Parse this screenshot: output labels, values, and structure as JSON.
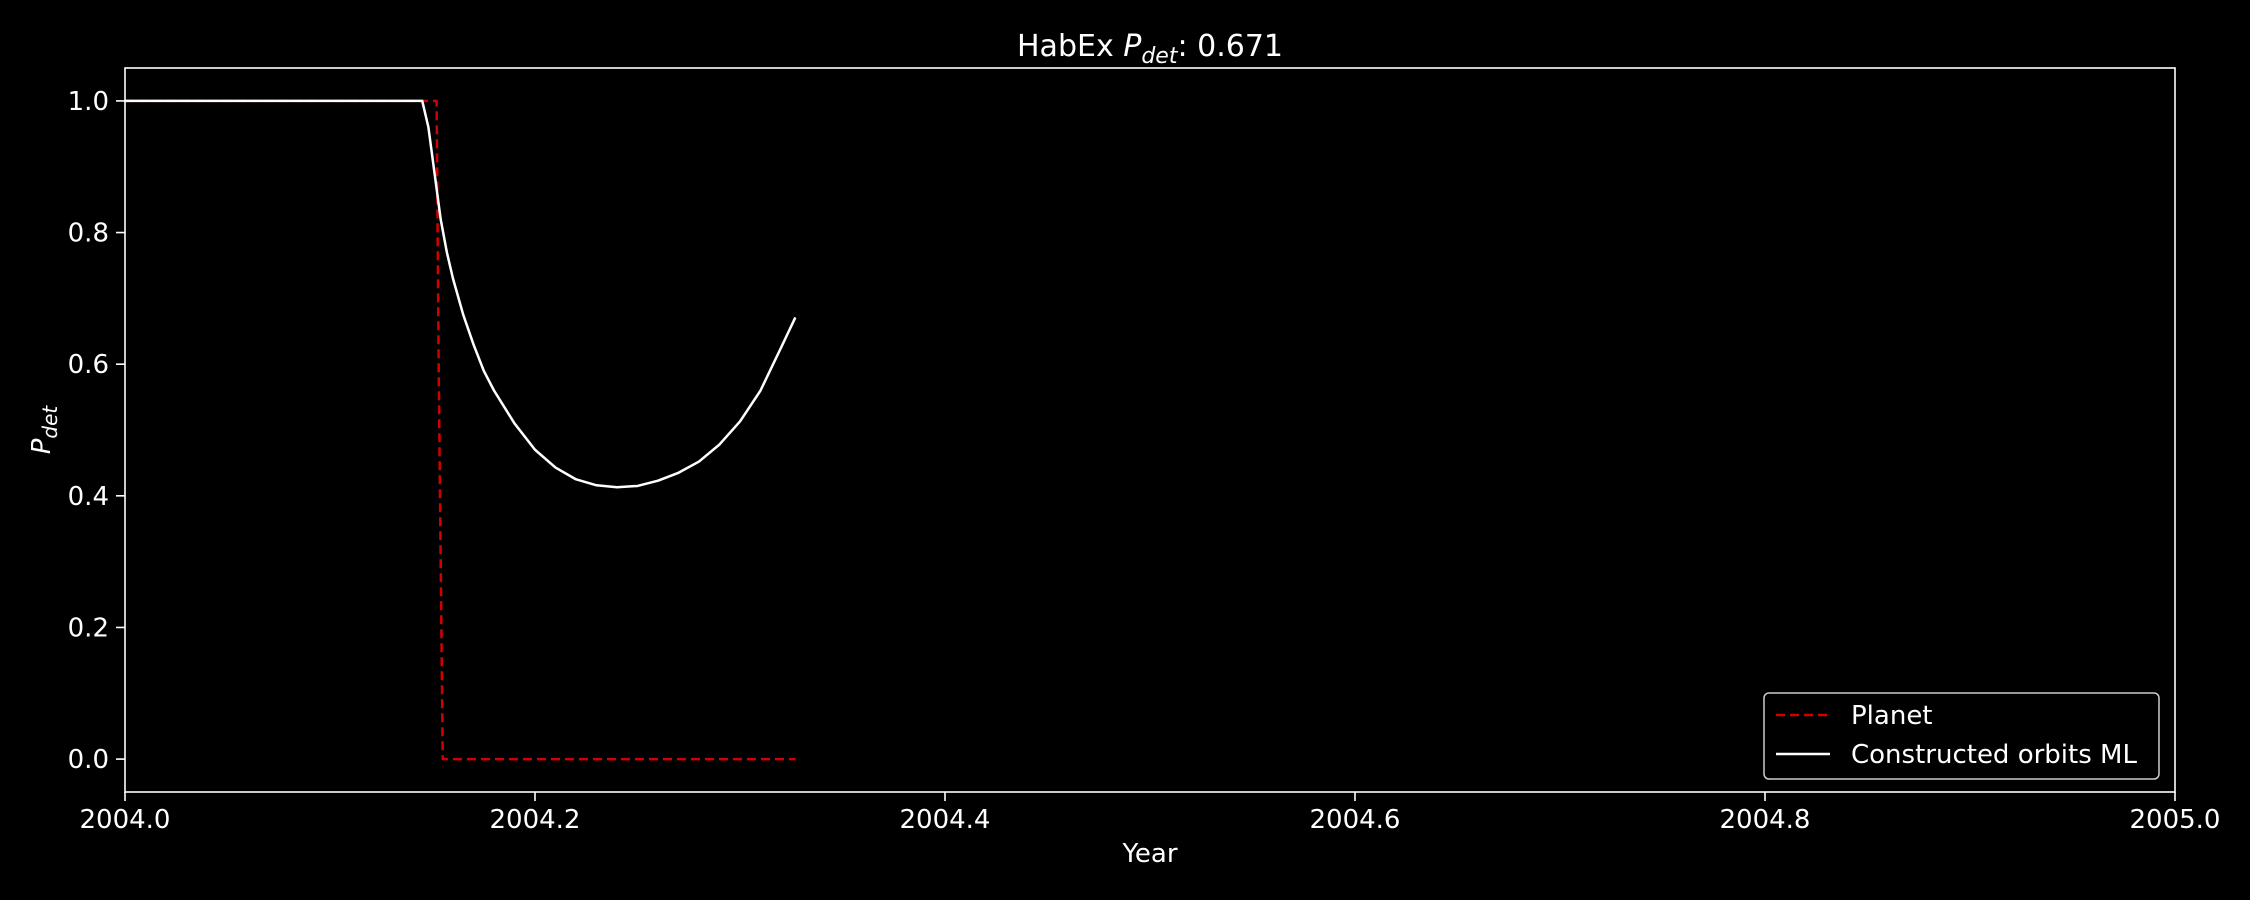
{
  "chart_data": {
    "type": "line",
    "title": {
      "prefix": "HabEx ",
      "var_main": "P",
      "var_sub": "det",
      "suffix": ": 0.671"
    },
    "xlabel": "Year",
    "ylabel": {
      "main": "P",
      "sub": "det"
    },
    "xlim": [
      2004.0,
      2005.0
    ],
    "ylim": [
      -0.05,
      1.05
    ],
    "xticks": [
      2004.0,
      2004.2,
      2004.4,
      2004.6,
      2004.8,
      2005.0
    ],
    "xtick_labels": [
      "2004.0",
      "2004.2",
      "2004.4",
      "2004.6",
      "2004.8",
      "2005.0"
    ],
    "yticks": [
      0.0,
      0.2,
      0.4,
      0.6,
      0.8,
      1.0
    ],
    "ytick_labels": [
      "0.0",
      "0.2",
      "0.4",
      "0.6",
      "0.8",
      "1.0"
    ],
    "grid": false,
    "legend_position": "bottom-right",
    "background": "#000000",
    "foreground": "#ffffff",
    "series": [
      {
        "name": "Planet",
        "color": "#d40000",
        "style": "dashed",
        "x": [
          2004.0,
          2004.15,
          2004.152,
          2004.153,
          2004.155,
          2004.327
        ],
        "y": [
          1.0,
          1.0,
          1.0,
          0.6,
          0.0,
          0.0
        ]
      },
      {
        "name": "Constructed orbits ML",
        "color": "#ffffff",
        "style": "solid",
        "x": [
          2004.0,
          2004.05,
          2004.1,
          2004.145,
          2004.148,
          2004.151,
          2004.154,
          2004.157,
          2004.16,
          2004.165,
          2004.17,
          2004.175,
          2004.18,
          2004.19,
          2004.2,
          2004.21,
          2004.22,
          2004.23,
          2004.24,
          2004.25,
          2004.26,
          2004.27,
          2004.28,
          2004.29,
          2004.3,
          2004.31,
          2004.32,
          2004.327
        ],
        "y": [
          1.0,
          1.0,
          1.0,
          1.0,
          0.96,
          0.89,
          0.82,
          0.77,
          0.73,
          0.675,
          0.63,
          0.59,
          0.56,
          0.51,
          0.47,
          0.443,
          0.425,
          0.416,
          0.413,
          0.415,
          0.423,
          0.435,
          0.452,
          0.478,
          0.513,
          0.56,
          0.625,
          0.671
        ]
      }
    ]
  }
}
